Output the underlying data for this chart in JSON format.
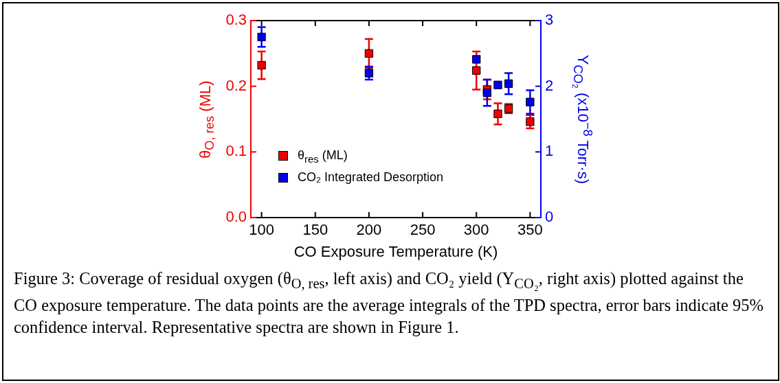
{
  "chart_data": {
    "type": "scatter",
    "xlabel": "CO Exposure Temperature (K)",
    "ylabel": "θ$_{O, res}$ (ML)",
    "y2label": "Y$_{CO₂}$ (x10$^{−8}$ Torr·s)",
    "x": [
      100,
      200,
      300,
      310,
      320,
      330,
      350
    ],
    "series": [
      {
        "name": "θ$_{res}$ (ML)",
        "color": "#ee0000",
        "values": [
          0.232,
          0.25,
          0.224,
          0.195,
          0.158,
          0.166,
          0.146
        ],
        "errors": [
          0.021,
          0.022,
          0.029,
          0.015,
          0.016,
          0.007,
          0.01
        ]
      },
      {
        "name": "CO₂ Integrated Desorption",
        "color": "#0000ee",
        "axis": "y2",
        "values": [
          2.75,
          2.2,
          2.41,
          1.9,
          2.02,
          2.04,
          1.76
        ],
        "errors": [
          0.15,
          0.1,
          null,
          0.2,
          null,
          0.16,
          0.18
        ]
      }
    ],
    "xlim": [
      90,
      360
    ],
    "xticks": [
      100,
      150,
      200,
      250,
      300,
      350
    ],
    "ylim": [
      0,
      0.3
    ],
    "yticks": [
      {
        "value": 0,
        "label": "0.0"
      },
      0.1,
      0.2,
      0.3
    ],
    "y2lim": [
      0,
      3
    ],
    "y2ticks": [
      0,
      1,
      2,
      3
    ],
    "marker": "square",
    "grid": false,
    "legend": "bottom left",
    "annotations": [
      "Figure 3: Coverage of residual oxygen (θ$_{O, res}$, left axis) and CO₂ yield (Y$_{CO₂}$, right axis) plotted against the CO exposure temperature.  The data points are the average integrals of the TPD spectra, error bars indicate 95% confidence interval. Representative spectra are shown in Figure 1."
    ]
  }
}
